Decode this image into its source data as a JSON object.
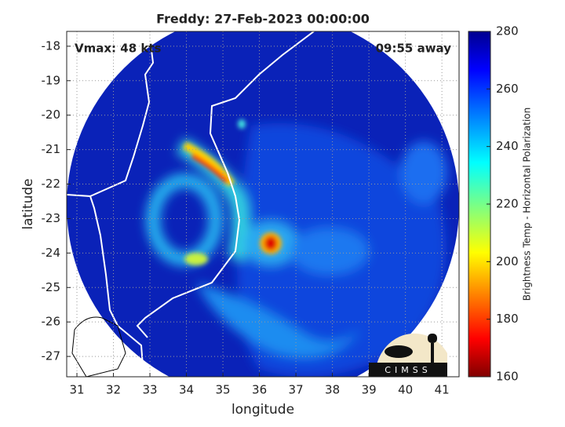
{
  "chart_data": {
    "type": "image",
    "title": "Freddy: 27-Feb-2023 00:00:00",
    "annotations": [
      "Vmax: 48 kts",
      "09:55 away"
    ],
    "xlabel": "longitude",
    "ylabel": "latitude",
    "xlim": [
      30.72,
      41.47
    ],
    "xticks": [
      31,
      32,
      33,
      34,
      35,
      36,
      37,
      38,
      39,
      40,
      41
    ],
    "ylim": [
      -27.59,
      -17.57
    ],
    "yticks": [
      -18,
      -19,
      -20,
      -21,
      -22,
      -23,
      -24,
      -25,
      -26,
      -27
    ],
    "grid": true,
    "colorbar": {
      "label": "Brightness Temp - Horizontal Polarization",
      "lim": [
        160,
        280
      ],
      "ticks": [
        160,
        180,
        200,
        220,
        240,
        260,
        280
      ],
      "colors": [
        "#800000",
        "#ff0000",
        "#ffff00",
        "#00ffff",
        "#0000ff",
        "#00008f"
      ]
    },
    "logo": "CIMSS"
  }
}
